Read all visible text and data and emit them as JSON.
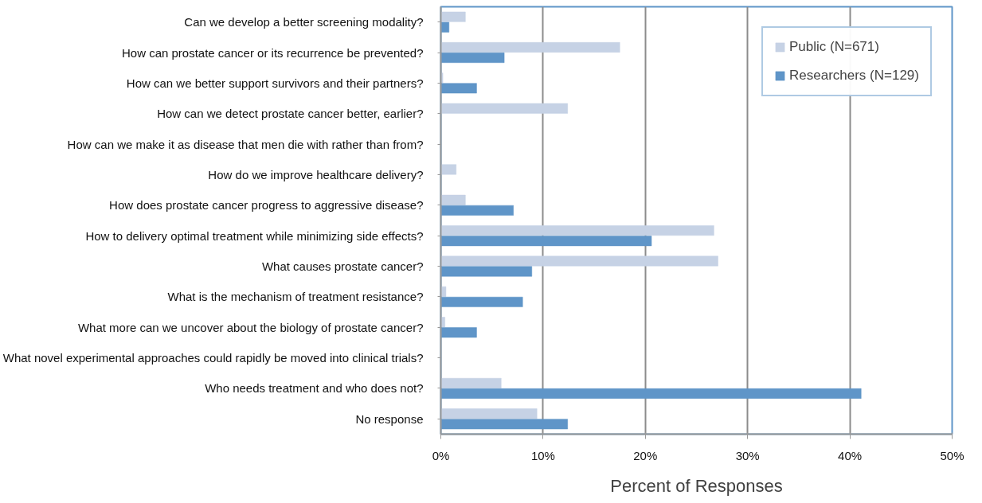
{
  "chart_data": {
    "type": "bar",
    "orientation": "horizontal",
    "xlabel": "Percent of Responses",
    "categories": [
      "Can we develop a better screening modality?",
      "How can prostate cancer or its recurrence be prevented?",
      "How can we better support survivors and their partners?",
      "How can we detect prostate cancer better, earlier?",
      "How can we make it as disease that men die with rather than from?",
      "How do we improve healthcare delivery?",
      "How does prostate cancer progress to aggressive disease?",
      "How to delivery optimal treatment while minimizing side effects?",
      "What causes prostate cancer?",
      "What is the mechanism of treatment resistance?",
      "What more can we uncover about the biology of prostate cancer?",
      "What novel experimental approaches could rapidly be moved into clinical trials?",
      "Who needs treatment and who does not?",
      "No response"
    ],
    "series": [
      {
        "name": "Public (N=671)",
        "color": "#c6d2e5",
        "values": [
          2.4,
          17.5,
          0.2,
          12.4,
          null,
          1.5,
          2.4,
          26.7,
          27.1,
          0.5,
          0.4,
          null,
          5.9,
          9.4
        ]
      },
      {
        "name": "Researchers (N=129)",
        "color": "#5f95c8",
        "values": [
          0.8,
          6.2,
          3.5,
          0,
          0,
          0,
          7.1,
          20.6,
          8.9,
          8.0,
          3.5,
          0,
          41.1,
          12.4
        ]
      }
    ],
    "xlim": [
      0,
      50
    ],
    "xticks": [
      {
        "value": 0,
        "label": "0%"
      },
      {
        "value": 10,
        "label": "10%"
      },
      {
        "value": 20,
        "label": "20%"
      },
      {
        "value": 30,
        "label": "30%"
      },
      {
        "value": 40,
        "label": "40%"
      },
      {
        "value": 50,
        "label": "50%"
      }
    ],
    "grid": "x",
    "legend": "top right"
  }
}
